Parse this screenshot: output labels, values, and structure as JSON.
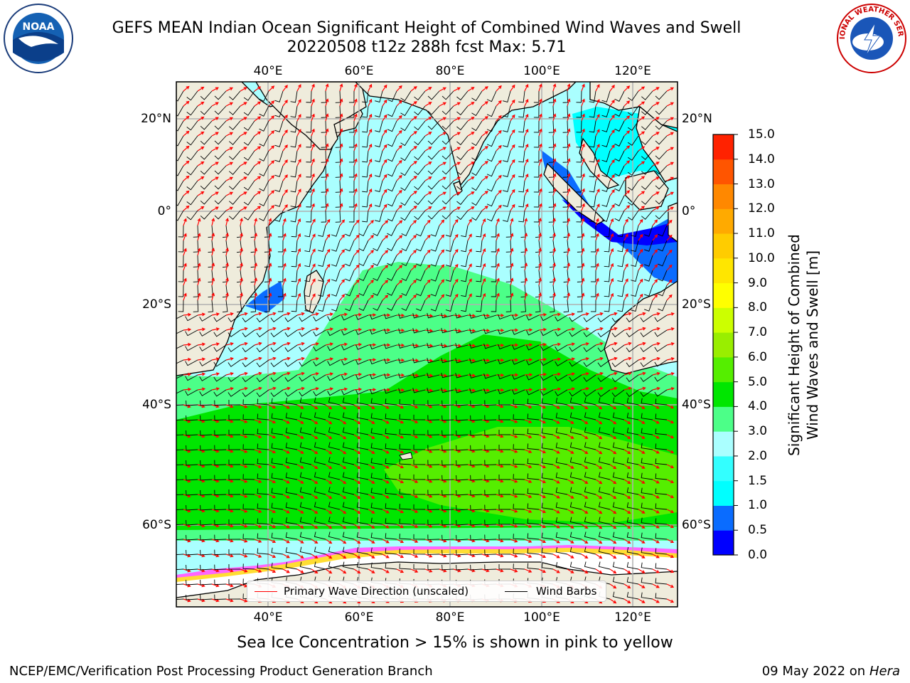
{
  "header": {
    "title_line1": "GEFS MEAN Indian Ocean Significant Height of Combined Wind Waves and Swell",
    "title_line2": "20220508 t12z 288h fcst   Max: 5.71"
  },
  "map": {
    "lon_ticks": [
      "40°E",
      "60°E",
      "80°E",
      "100°E",
      "120°E"
    ],
    "lat_ticks": [
      "20°N",
      "0°",
      "20°S",
      "40°S",
      "60°S"
    ],
    "colors": {
      "land": "#efecdc",
      "coast": "#000000",
      "grid": "#b0b0b0",
      "arrow": "#ff0000",
      "barb": "#000000"
    }
  },
  "colorbar": {
    "ticks": [
      "0.0",
      "0.5",
      "1.0",
      "1.5",
      "2.0",
      "3.0",
      "4.0",
      "5.0",
      "6.0",
      "7.0",
      "8.0",
      "9.0",
      "10.0",
      "11.0",
      "12.0",
      "13.0",
      "14.0",
      "15.0"
    ],
    "colors": [
      "#0000ff",
      "#0a6cff",
      "#00ffff",
      "#33ffff",
      "#aaffff",
      "#4cff88",
      "#00e600",
      "#55ee00",
      "#99ee00",
      "#ccff00",
      "#ffff00",
      "#ffe600",
      "#ffcc00",
      "#ffaa00",
      "#ff8800",
      "#ff5500",
      "#ff2200",
      "#ff0000"
    ],
    "label_line1": "Significant Height of Combined",
    "label_line2": "Wind Waves and Swell [m]"
  },
  "legend": {
    "primary_wave": "Primary Wave Direction (unscaled)",
    "wind_barbs": "Wind Barbs"
  },
  "footer": {
    "sea_ice_note": "Sea Ice Concentration > 15% is shown in pink to yellow",
    "credit_left": "NCEP/EMC/Verification Post Processing Product Generation Branch",
    "credit_date": "09 May 2022 on",
    "credit_machine": "Hera"
  },
  "logos": {
    "noaa": "NOAA",
    "nws": "NATIONAL WEATHER SERVICE"
  }
}
